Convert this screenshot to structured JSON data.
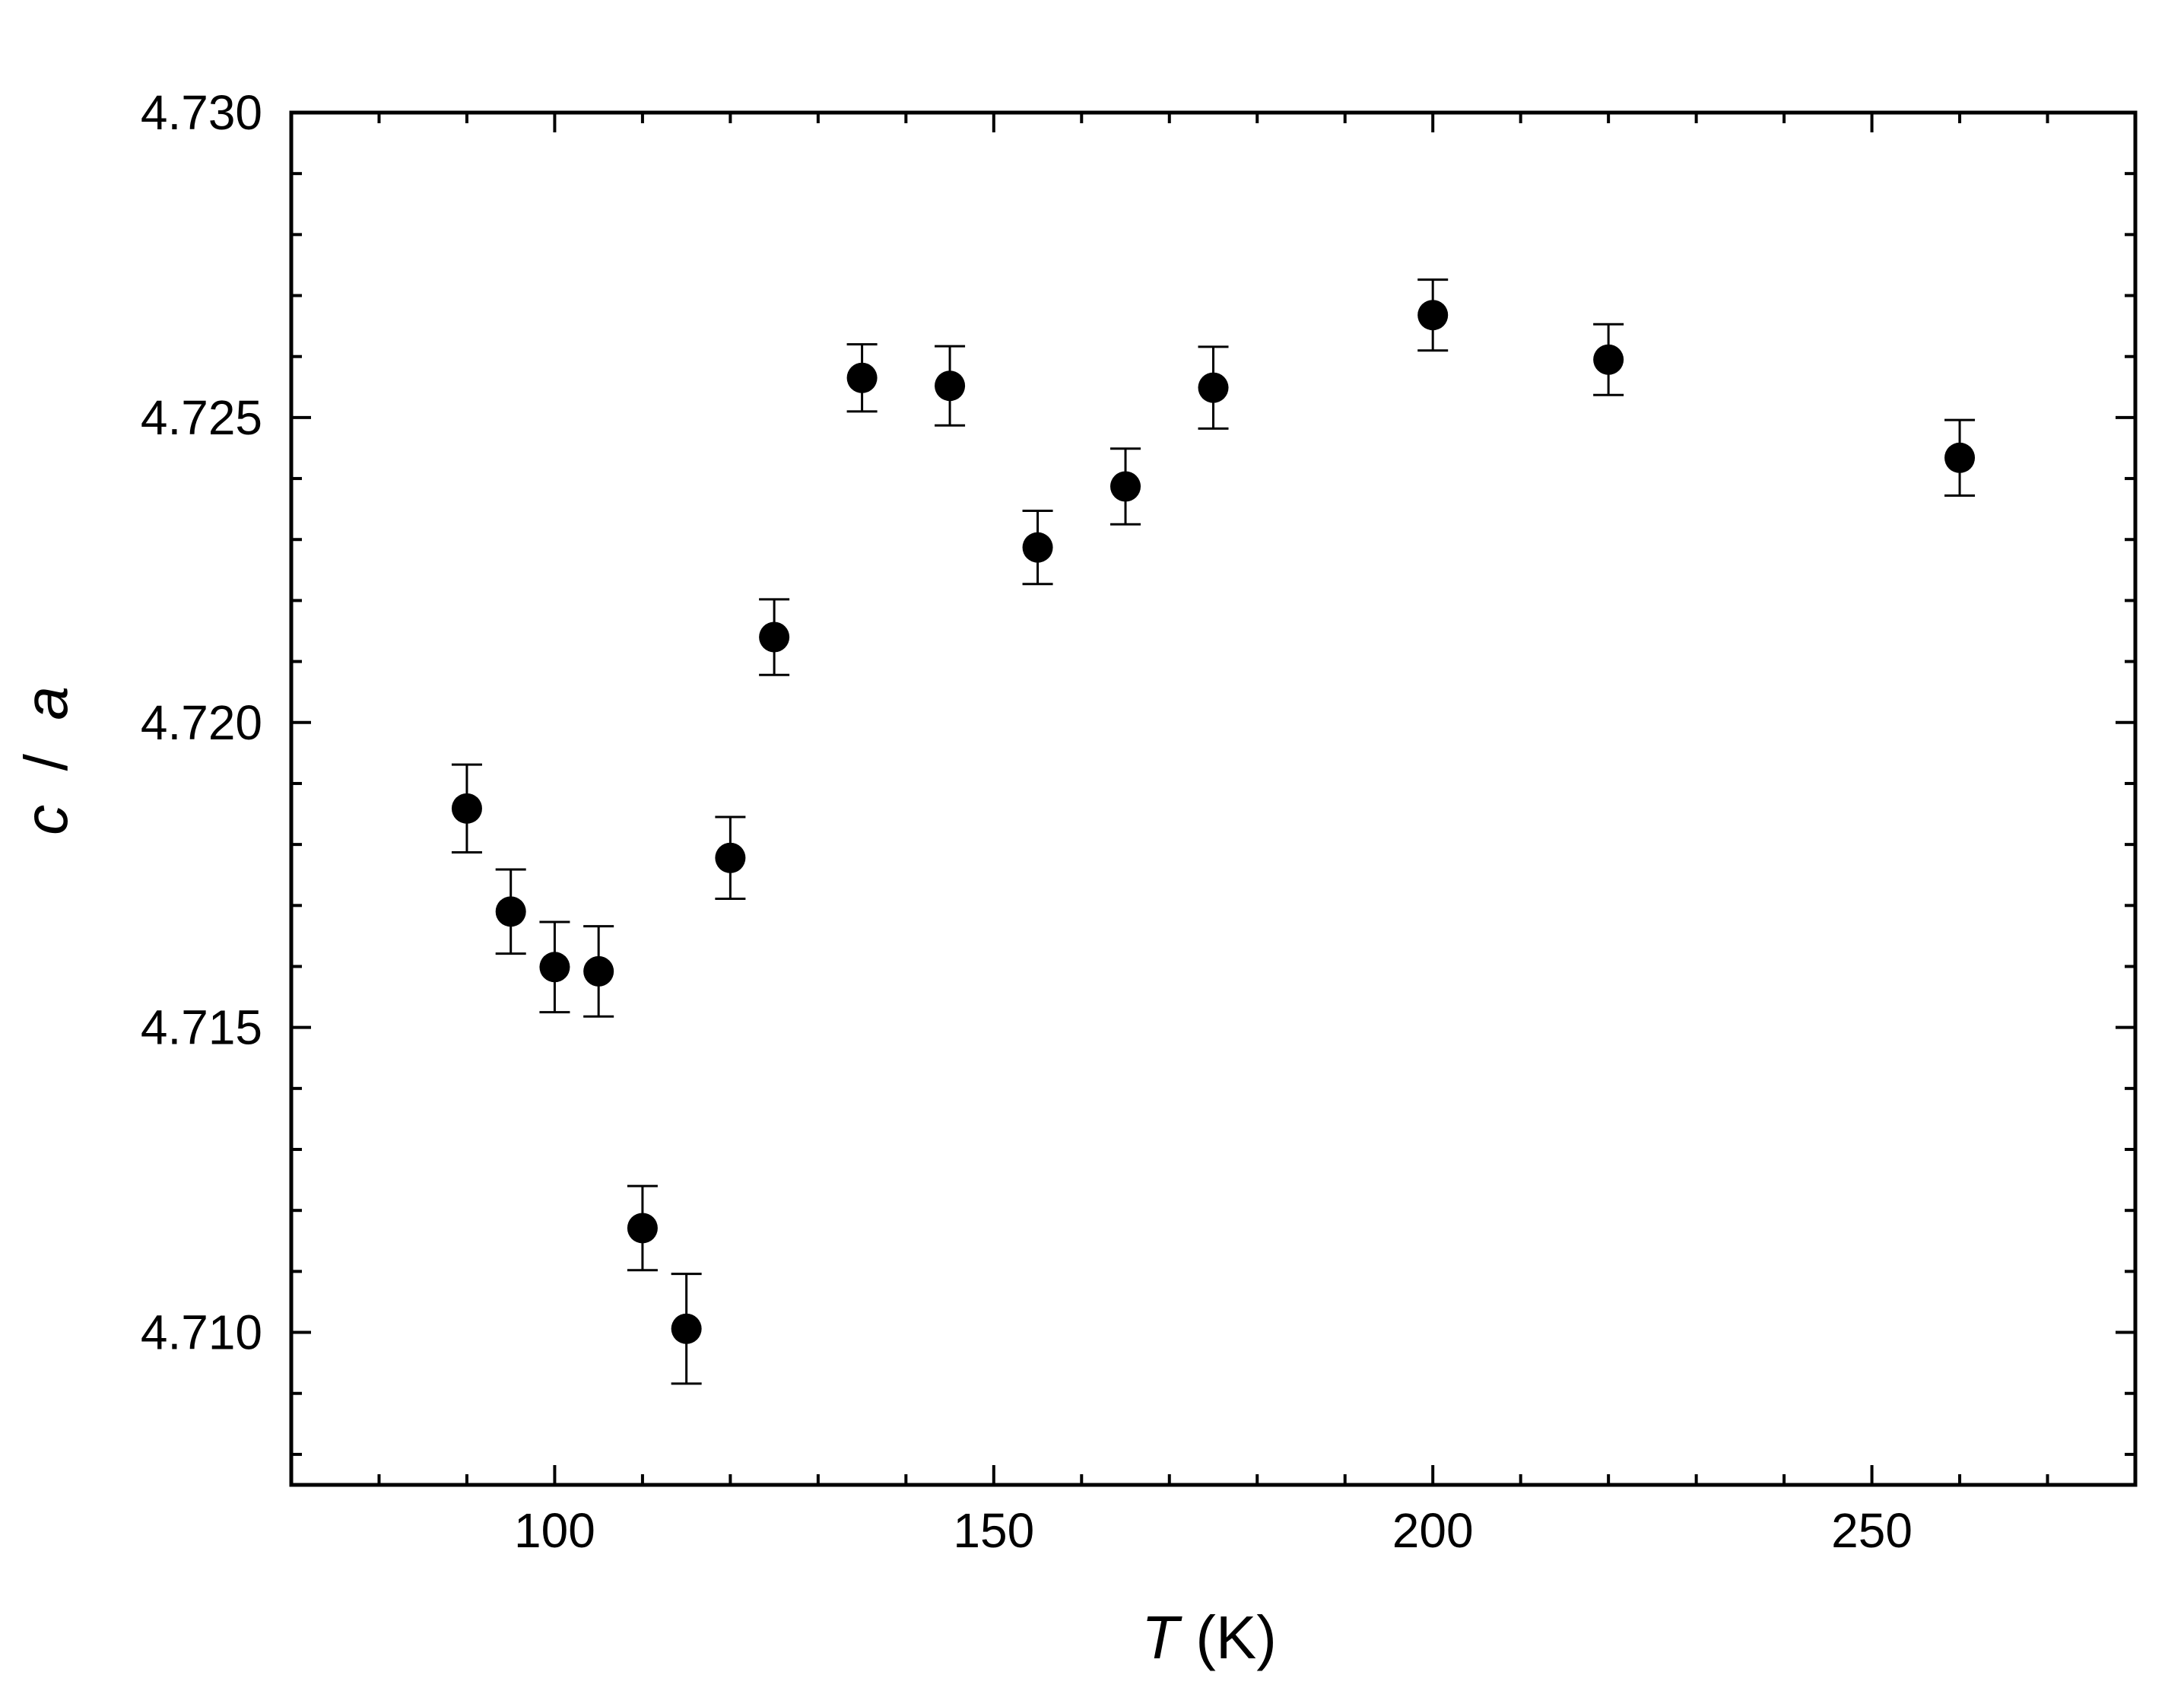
{
  "chart_data": {
    "type": "scatter",
    "xlabel": {
      "symbol": "T",
      "unit": "(K)"
    },
    "ylabel": {
      "numerator": "c",
      "separator": " / ",
      "denominator": "a"
    },
    "xlim": [
      70,
      280
    ],
    "ylim": [
      4.7075,
      4.73
    ],
    "x_ticks": [
      100,
      150,
      200,
      250
    ],
    "x_minor_ticks": [
      80,
      90,
      110,
      120,
      130,
      140,
      160,
      170,
      180,
      190,
      210,
      220,
      230,
      240,
      260,
      270
    ],
    "y_ticks": [
      4.71,
      4.715,
      4.72,
      4.725,
      4.73
    ],
    "y_tick_labels": [
      "4.710",
      "4.715",
      "4.720",
      "4.725",
      "4.730"
    ],
    "y_minor_ticks": [
      4.708,
      4.709,
      4.711,
      4.712,
      4.713,
      4.714,
      4.716,
      4.717,
      4.718,
      4.719,
      4.721,
      4.722,
      4.723,
      4.724,
      4.726,
      4.727,
      4.728,
      4.729
    ],
    "grid": false,
    "legend": "none",
    "marker_color": "#000000",
    "points": [
      {
        "x": 90,
        "y": 4.71859,
        "err": 0.00072
      },
      {
        "x": 95,
        "y": 4.7169,
        "err": 0.00069
      },
      {
        "x": 100,
        "y": 4.71599,
        "err": 0.00074
      },
      {
        "x": 105,
        "y": 4.71592,
        "err": 0.00074
      },
      {
        "x": 110,
        "y": 4.71171,
        "err": 0.00069
      },
      {
        "x": 115,
        "y": 4.71006,
        "err": 0.0009
      },
      {
        "x": 120,
        "y": 4.71778,
        "err": 0.00067
      },
      {
        "x": 125,
        "y": 4.7214,
        "err": 0.00062
      },
      {
        "x": 135,
        "y": 4.72565,
        "err": 0.00055
      },
      {
        "x": 145,
        "y": 4.72552,
        "err": 0.00065
      },
      {
        "x": 155,
        "y": 4.72287,
        "err": 0.0006
      },
      {
        "x": 165,
        "y": 4.72387,
        "err": 0.00062
      },
      {
        "x": 175,
        "y": 4.72549,
        "err": 0.00067
      },
      {
        "x": 200,
        "y": 4.72668,
        "err": 0.00058
      },
      {
        "x": 220,
        "y": 4.72595,
        "err": 0.00058
      },
      {
        "x": 260,
        "y": 4.72434,
        "err": 0.00062
      }
    ]
  }
}
